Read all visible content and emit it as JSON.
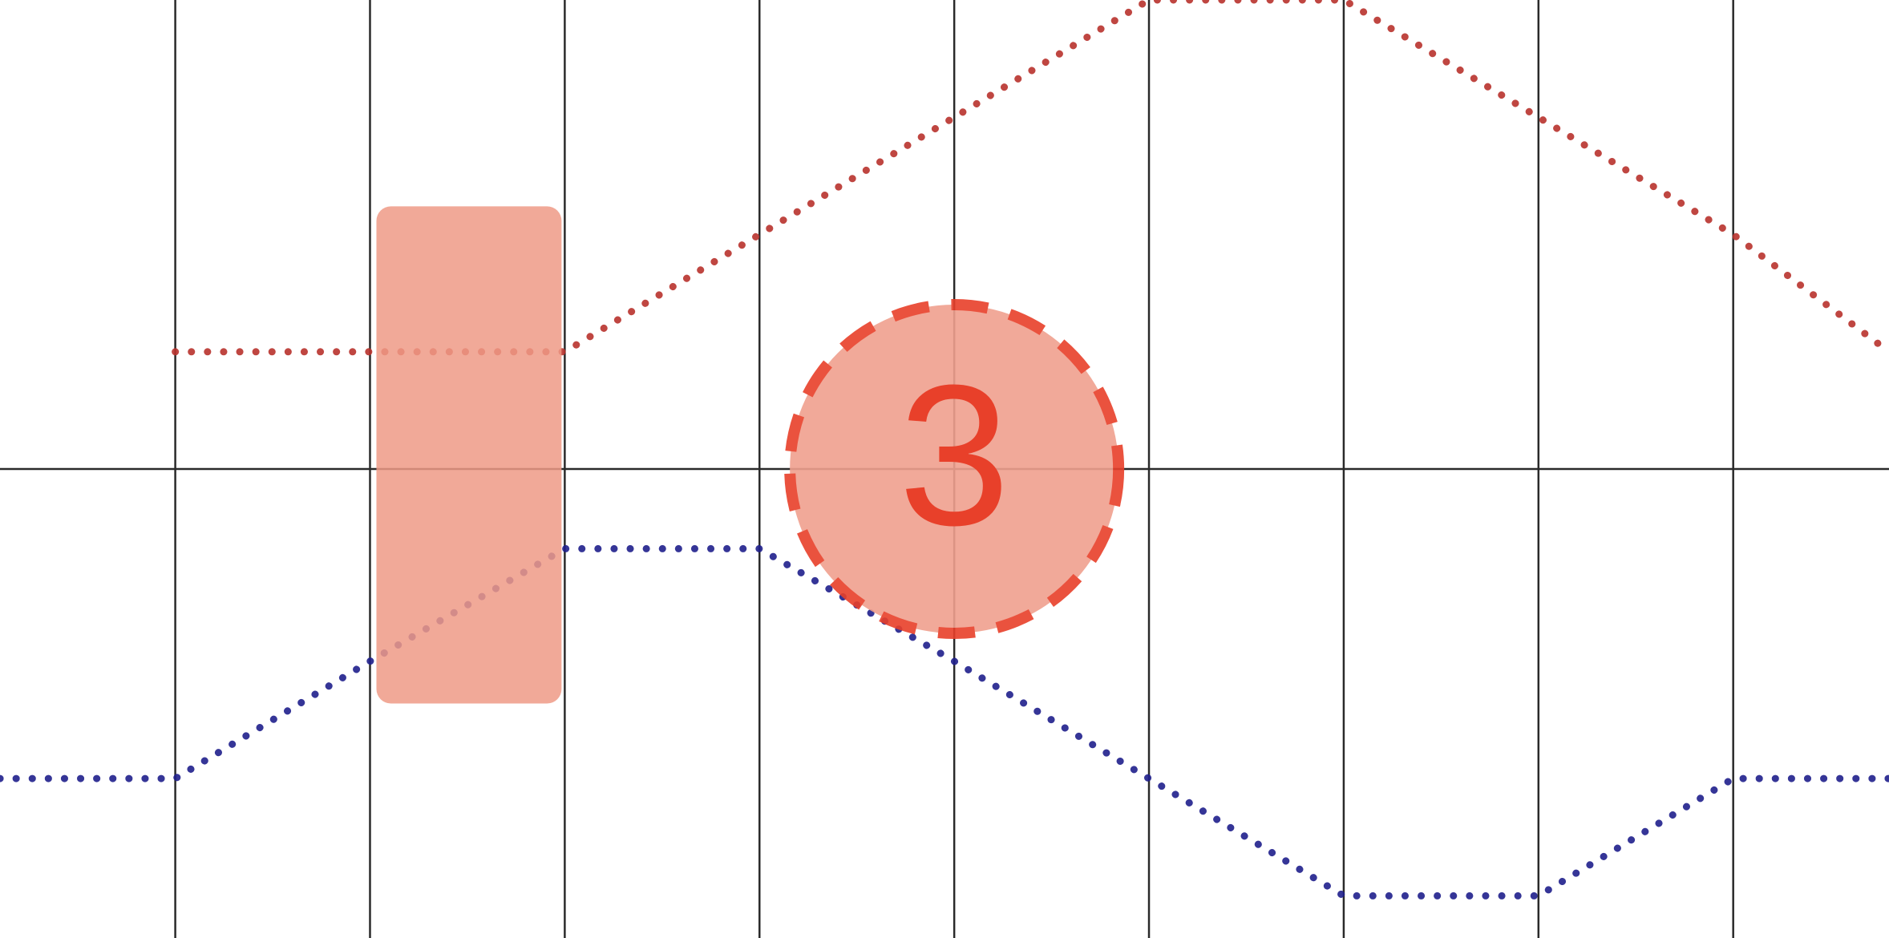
{
  "colors": {
    "background": "#ffffff",
    "gridline": "#2a2a2a",
    "series_red": "#b8322c",
    "series_blue": "#1f1f8c",
    "highlight_fill": "#ee9a86",
    "marker_stroke": "#e8402a",
    "marker_fill": "#f0a08e",
    "marker_text": "#e8402a"
  },
  "chart_data": {
    "type": "line",
    "title": "",
    "xlabel": "",
    "ylabel": "",
    "grid": true,
    "line_style": "dotted",
    "x": [
      0,
      1,
      2,
      3,
      4,
      5,
      6,
      7,
      8,
      9
    ],
    "xlim": [
      -0.9,
      8.8
    ],
    "ylim": [
      -1.0,
      1.0
    ],
    "series": [
      {
        "name": "red",
        "x": [
          0,
          1,
          2,
          3,
          4,
          5,
          6,
          7,
          8,
          8.8
        ],
        "values": [
          0.25,
          0.25,
          0.25,
          0.5,
          0.75,
          1.0,
          1.0,
          0.75,
          0.5,
          0.25
        ]
      },
      {
        "name": "blue",
        "x": [
          -0.9,
          0,
          1,
          2,
          3,
          4,
          5,
          6,
          7,
          8,
          8.8
        ],
        "values": [
          -0.66,
          -0.66,
          -0.41,
          -0.17,
          -0.17,
          -0.41,
          -0.66,
          -0.91,
          -0.91,
          -0.66,
          -0.66
        ]
      }
    ],
    "annotations": [
      {
        "type": "highlight-band",
        "x_range": [
          1,
          2
        ],
        "y_range": [
          -0.5,
          0.56
        ]
      },
      {
        "type": "marker",
        "label": "3",
        "x": 4,
        "y": 0.0
      }
    ]
  }
}
